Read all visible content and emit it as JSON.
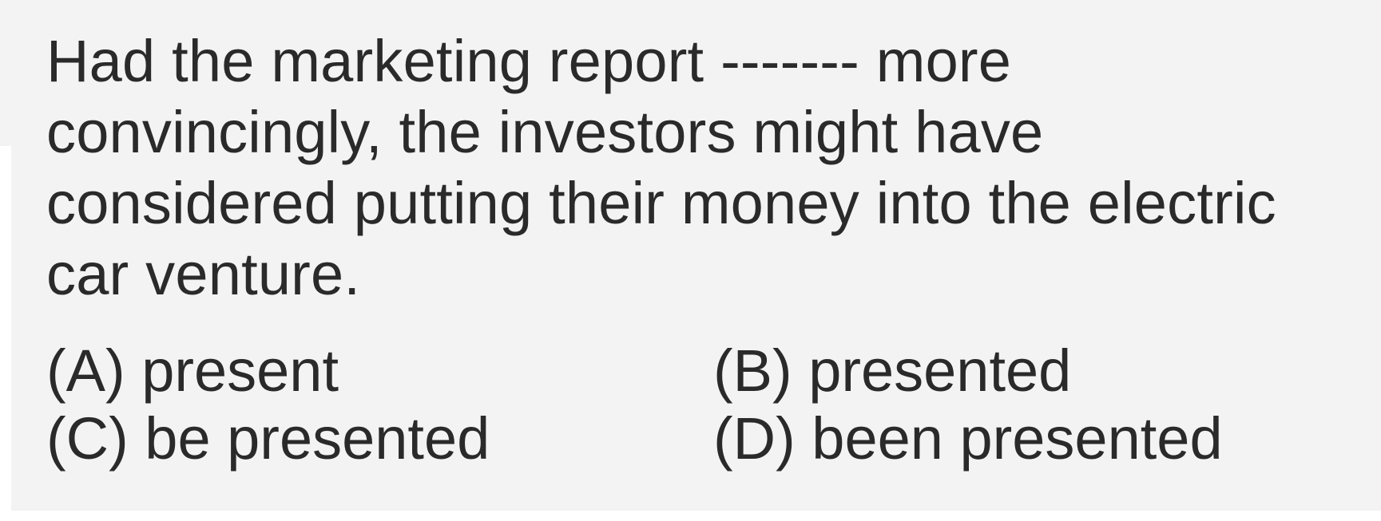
{
  "question": {
    "line1": "Had the marketing report ------- more",
    "line2": "convincingly, the investors might have",
    "line3": "considered putting their money into the electric",
    "line4": "car venture."
  },
  "options": {
    "a": "(A) present",
    "b": "(B) presented",
    "c": "(C) be presented",
    "d": "(D) been presented"
  }
}
